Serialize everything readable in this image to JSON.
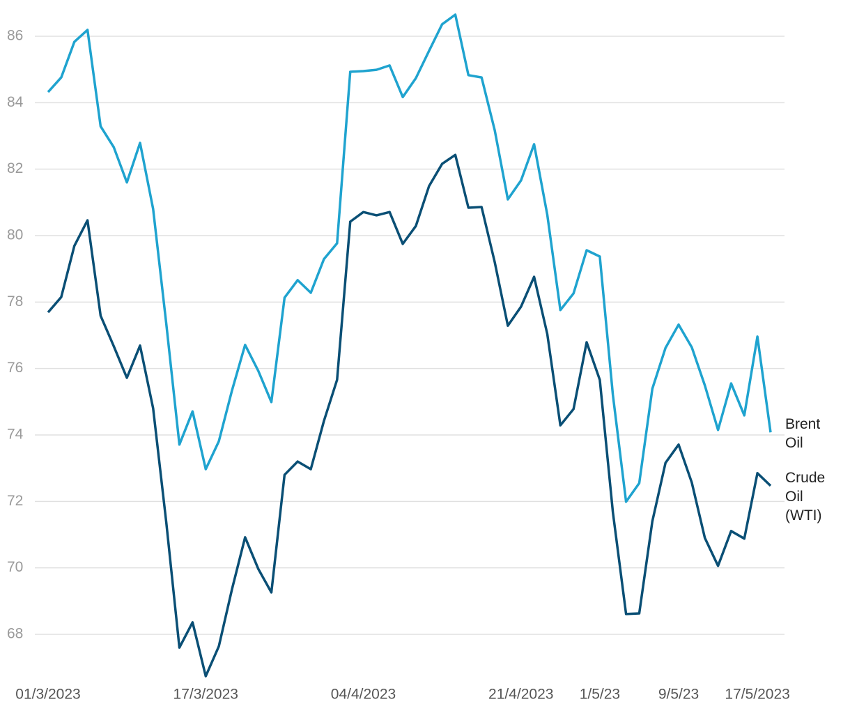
{
  "chart_data": {
    "type": "line",
    "categories": [
      "01/3/2023",
      null,
      null,
      null,
      null,
      null,
      null,
      null,
      null,
      null,
      null,
      null,
      "17/3/2023",
      null,
      null,
      null,
      null,
      null,
      null,
      null,
      null,
      null,
      null,
      null,
      "04/4/2023",
      null,
      null,
      null,
      null,
      null,
      null,
      null,
      null,
      null,
      null,
      null,
      "21/4/2023",
      null,
      null,
      null,
      null,
      null,
      "1/5/23",
      null,
      null,
      null,
      null,
      null,
      "9/5/23",
      null,
      null,
      null,
      null,
      null,
      "17/5/2023",
      null
    ],
    "series": [
      {
        "name": "Brent Oil",
        "color": "#1fa3cf",
        "values": [
          84.32,
          84.76,
          85.83,
          86.19,
          83.29,
          82.66,
          81.6,
          82.79,
          80.8,
          77.34,
          73.71,
          74.71,
          72.97,
          73.81,
          75.34,
          76.71,
          75.93,
          74.99,
          78.13,
          78.66,
          78.28,
          79.29,
          79.77,
          84.93,
          84.95,
          84.99,
          85.12,
          84.17,
          84.74,
          85.56,
          86.36,
          86.65,
          84.83,
          84.76,
          83.17,
          81.09,
          81.66,
          82.75,
          80.63,
          77.76,
          78.26,
          79.56,
          79.37,
          75.2,
          71.99,
          72.55,
          75.39,
          76.62,
          77.32,
          76.64,
          75.49,
          74.15,
          75.55,
          74.59,
          76.96,
          74.08
        ]
      },
      {
        "name": "Crude Oil (WTI)",
        "color": "#0a4f75",
        "values": [
          77.69,
          78.15,
          79.69,
          80.46,
          77.59,
          76.67,
          75.72,
          76.69,
          74.8,
          71.36,
          67.6,
          68.36,
          66.74,
          67.64,
          69.36,
          70.92,
          69.97,
          69.26,
          72.8,
          73.2,
          72.97,
          74.42,
          75.66,
          80.42,
          80.71,
          80.61,
          80.71,
          79.75,
          80.29,
          81.49,
          82.16,
          82.43,
          80.84,
          80.86,
          79.2,
          77.29,
          77.86,
          78.76,
          77.04,
          74.29,
          74.78,
          76.79,
          75.66,
          71.67,
          68.61,
          68.63,
          71.4,
          73.16,
          73.71,
          72.57,
          70.9,
          70.06,
          71.11,
          70.88,
          72.85,
          72.47
        ]
      }
    ],
    "ylim": [
      66.5,
      86.7
    ],
    "yticks": [
      68,
      70,
      72,
      74,
      76,
      78,
      80,
      82,
      84,
      86
    ],
    "grid": true
  }
}
